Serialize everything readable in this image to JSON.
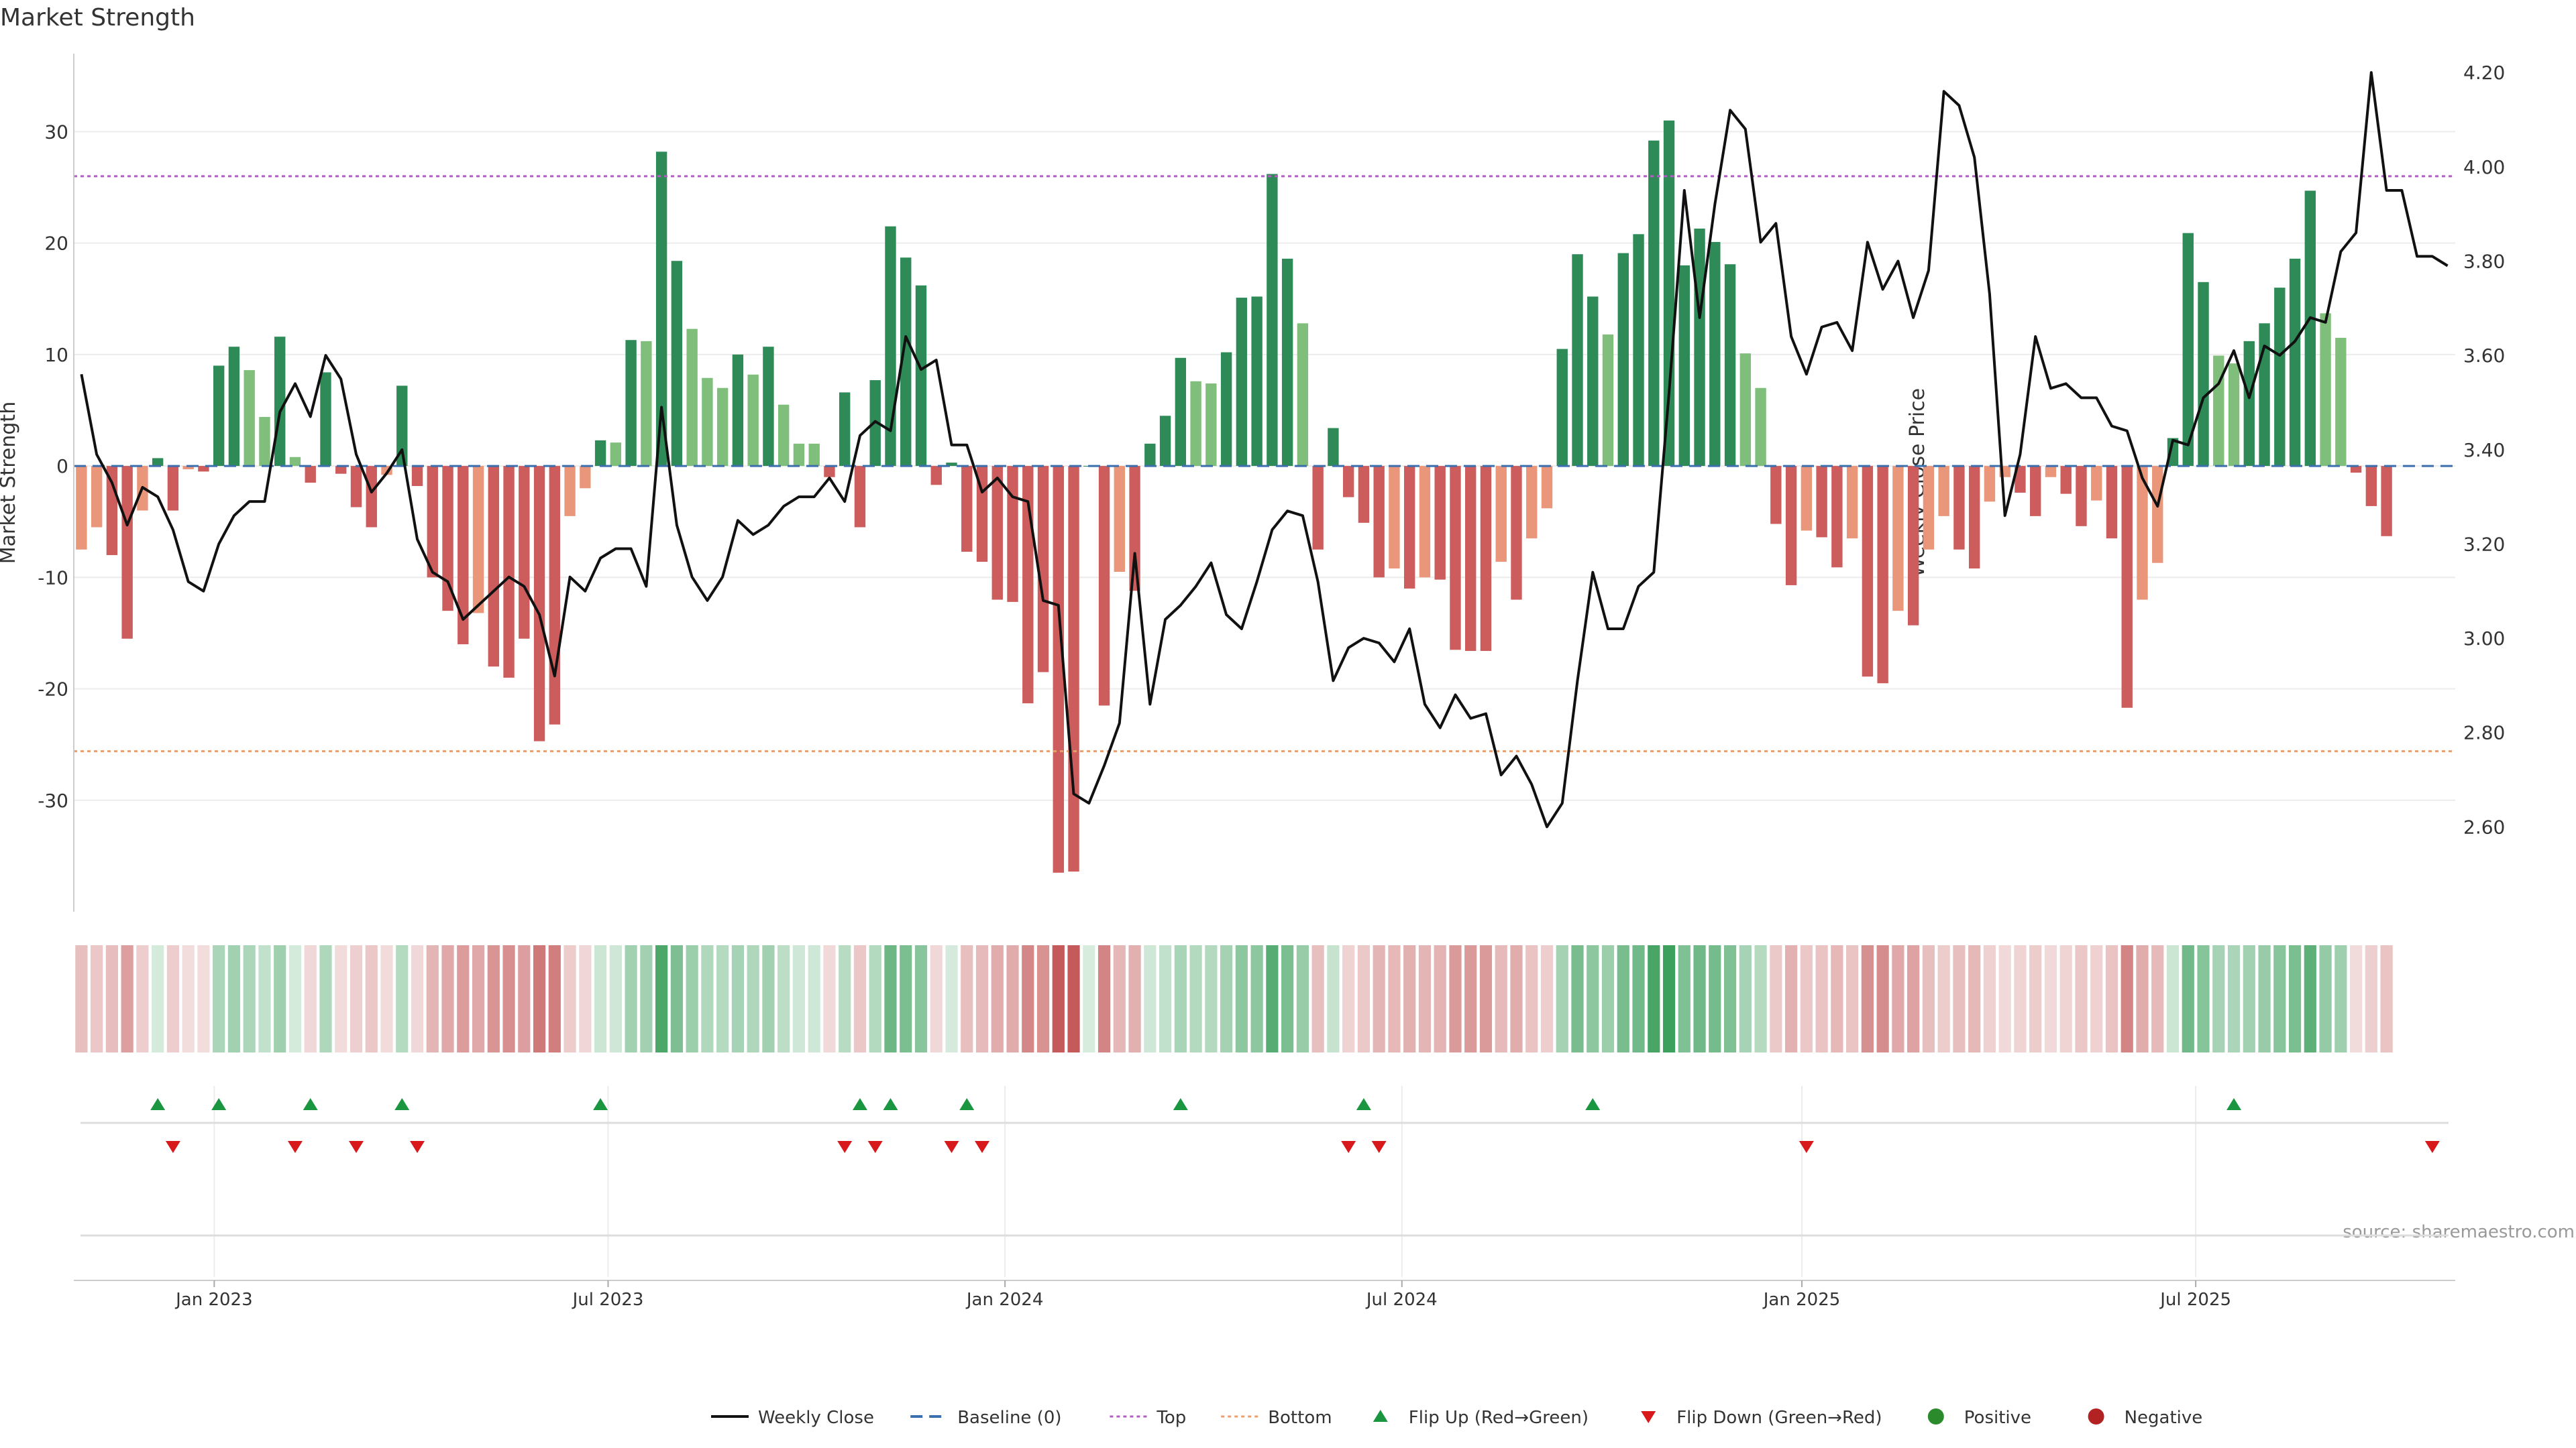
{
  "chart_data": {
    "type": "bar",
    "title": "Market Strength",
    "ylabel": "Market Strength",
    "y2label": "Weekly Close Price",
    "source": "source: sharemaestro.com",
    "ylim": [
      -40,
      37
    ],
    "y2lim": [
      2.42,
      4.24
    ],
    "yticks": [
      30,
      20,
      10,
      0,
      -10,
      -20,
      -30
    ],
    "y2ticks": [
      "4.20",
      "4.00",
      "3.80",
      "3.60",
      "3.40",
      "3.20",
      "3.00",
      "2.80",
      "2.60"
    ],
    "top_level": 26,
    "bottom_level": -25.6,
    "x_start_week": 0,
    "x_end_week": 156,
    "x_ticks": [
      {
        "label": "Jan 2023",
        "week": 9.2
      },
      {
        "label": "Jul 2023",
        "week": 35
      },
      {
        "label": "Jan 2024",
        "week": 61
      },
      {
        "label": "Jul 2024",
        "week": 87
      },
      {
        "label": "Jan 2025",
        "week": 113.2
      },
      {
        "label": "Jul 2025",
        "week": 139
      }
    ],
    "strength": [
      -7.5,
      -5.5,
      -8,
      -15.5,
      -4,
      0.7,
      -4,
      -0.3,
      -0.5,
      9,
      10.7,
      8.6,
      4.4,
      11.6,
      0.8,
      -1.5,
      8.4,
      -0.7,
      -3.7,
      -5.5,
      -0.8,
      7.2,
      -1.8,
      -10,
      -13,
      -16,
      -13.2,
      -18,
      -19,
      -15.5,
      -24.7,
      -23.2,
      -4.5,
      -2,
      2.3,
      2.1,
      11.3,
      11.2,
      28.2,
      18.4,
      12.3,
      7.9,
      7,
      10,
      8.2,
      10.7,
      5.5,
      2,
      2,
      -1,
      6.6,
      -5.5,
      7.7,
      21.5,
      18.7,
      16.2,
      -1.7,
      0.3,
      -7.7,
      -8.6,
      -12,
      -12.2,
      -21.3,
      -18.5,
      -36.5,
      -36.4,
      0,
      -21.5,
      -9.5,
      -11.2,
      2,
      4.5,
      9.7,
      7.6,
      7.4,
      10.2,
      15.1,
      15.2,
      26.2,
      18.6,
      12.8,
      -7.5,
      3.4,
      -2.8,
      -5.1,
      -10,
      -9.2,
      -11,
      -10,
      -10.2,
      -16.5,
      -16.6,
      -16.6,
      -8.6,
      -12,
      -6.5,
      -3.8,
      10.5,
      19,
      15.2,
      11.8,
      19.1,
      20.8,
      29.2,
      31,
      18,
      21.3,
      20.1,
      18.1,
      10.1,
      7,
      -5.2,
      -10.7,
      -5.8,
      -6.4,
      -9.1,
      -6.5,
      -18.9,
      -19.5,
      -13,
      -14.3,
      -7.5,
      -4.5,
      -7.5,
      -9.2,
      -3.2,
      -1,
      -2.4,
      -4.5,
      -1,
      -2.5,
      -5.4,
      -3.1,
      -6.5,
      -21.7,
      -12,
      -8.7,
      2.5,
      20.9,
      16.5,
      9.9,
      9.2,
      11.2,
      12.8,
      16,
      18.6,
      24.7,
      13.7,
      11.5,
      -0.6,
      -3.6,
      -6.3
    ],
    "weekly_close": [
      3.56,
      3.39,
      3.33,
      3.24,
      3.32,
      3.3,
      3.23,
      3.12,
      3.1,
      3.2,
      3.26,
      3.29,
      3.29,
      3.48,
      3.54,
      3.47,
      3.6,
      3.55,
      3.39,
      3.31,
      3.35,
      3.4,
      3.21,
      3.14,
      3.12,
      3.04,
      3.07,
      3.1,
      3.13,
      3.11,
      3.05,
      2.92,
      3.13,
      3.1,
      3.17,
      3.19,
      3.19,
      3.11,
      3.49,
      3.24,
      3.13,
      3.08,
      3.13,
      3.25,
      3.22,
      3.24,
      3.28,
      3.3,
      3.3,
      3.34,
      3.29,
      3.43,
      3.46,
      3.44,
      3.64,
      3.57,
      3.59,
      3.41,
      3.41,
      3.31,
      3.34,
      3.3,
      3.29,
      3.08,
      3.07,
      2.67,
      2.65,
      2.73,
      2.82,
      3.18,
      2.86,
      3.04,
      3.07,
      3.11,
      3.16,
      3.05,
      3.02,
      3.12,
      3.23,
      3.27,
      3.26,
      3.12,
      2.91,
      2.98,
      3.0,
      2.99,
      2.95,
      3.02,
      2.86,
      2.81,
      2.88,
      2.83,
      2.84,
      2.71,
      2.75,
      2.69,
      2.6,
      2.65,
      2.91,
      3.14,
      3.02,
      3.02,
      3.11,
      3.14,
      3.52,
      3.95,
      3.68,
      3.92,
      4.12,
      4.08,
      3.84,
      3.88,
      3.64,
      3.56,
      3.66,
      3.67,
      3.61,
      3.84,
      3.74,
      3.8,
      3.68,
      3.78,
      4.16,
      4.13,
      4.02,
      3.73,
      3.26,
      3.39,
      3.64,
      3.53,
      3.54,
      3.51,
      3.51,
      3.45,
      3.44,
      3.34,
      3.28,
      3.42,
      3.41,
      3.51,
      3.54,
      3.61,
      3.51,
      3.62,
      3.6,
      3.63,
      3.68,
      3.67,
      3.82,
      3.86,
      4.2,
      3.95,
      3.95,
      3.81,
      3.81,
      3.79
    ],
    "flip_up_weeks": [
      5,
      9,
      15,
      21,
      34,
      51,
      53,
      58,
      72,
      84,
      99,
      141
    ],
    "flip_down_weeks": [
      6,
      14,
      18,
      22,
      50,
      52,
      57,
      59,
      83,
      85,
      113,
      154
    ],
    "legend": [
      "Weekly Close",
      "Baseline (0)",
      "Top",
      "Bottom",
      "Flip Up (Red→Green)",
      "Flip Down (Green→Red)",
      "Positive",
      "Negative"
    ],
    "colors": {
      "pos_strong": "#2e8b57",
      "pos_light": "#7fbf7b",
      "neg_strong": "#cd5c5c",
      "neg_light": "#e9967a",
      "price": "#111111",
      "baseline": "#3b6fb0",
      "top": "#b05fc0",
      "bottom": "#e8a070",
      "flip_up": "#1a9641",
      "flip_down": "#d7191c",
      "positive_dot": "#2b8a2b",
      "negative_dot": "#b22222"
    }
  }
}
